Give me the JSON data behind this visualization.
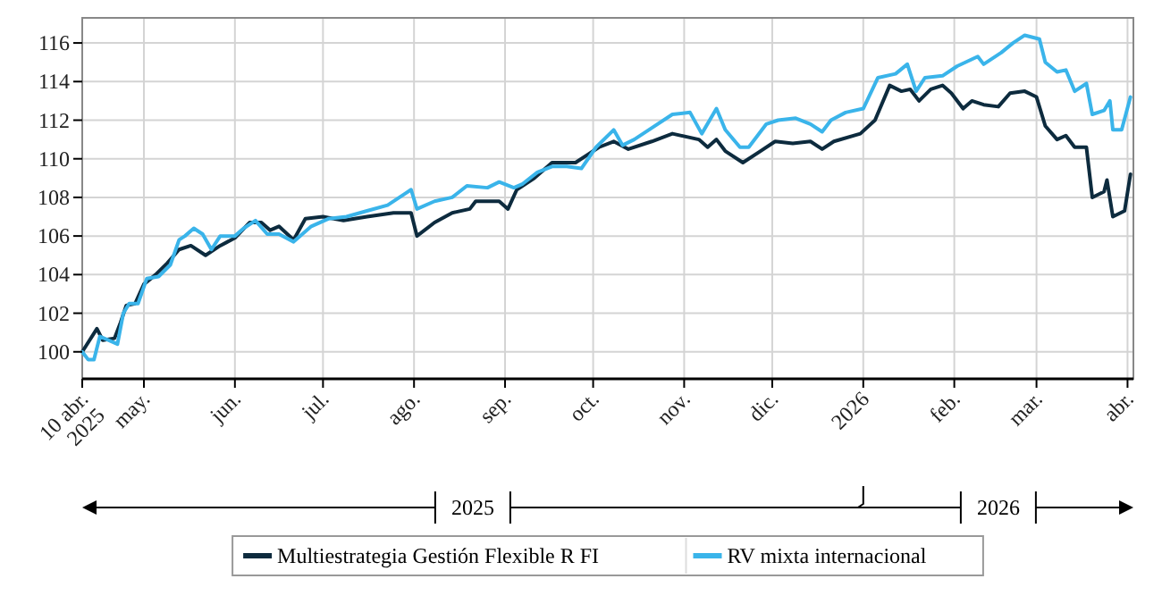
{
  "chart_data": {
    "type": "line",
    "xlim": [
      "2025-04-10",
      "2026-04-03"
    ],
    "xticks": [
      {
        "value": "2025-04-10",
        "label": "10 abr.\n2025"
      },
      {
        "value": "2025-05-01",
        "label": "may."
      },
      {
        "value": "2025-06-01",
        "label": "jun."
      },
      {
        "value": "2025-07-01",
        "label": "jul."
      },
      {
        "value": "2025-08-01",
        "label": "ago."
      },
      {
        "value": "2025-09-01",
        "label": "sep."
      },
      {
        "value": "2025-10-01",
        "label": "oct."
      },
      {
        "value": "2025-11-01",
        "label": "nov."
      },
      {
        "value": "2025-12-01",
        "label": "dic."
      },
      {
        "value": "2026-01-01",
        "label": "2026"
      },
      {
        "value": "2026-02-01",
        "label": "feb."
      },
      {
        "value": "2026-03-01",
        "label": "mar."
      },
      {
        "value": "2026-04-01",
        "label": "abr."
      }
    ],
    "ylim": [
      98.6,
      117.3
    ],
    "yticks": [
      100,
      102,
      104,
      106,
      108,
      110,
      112,
      114,
      116
    ],
    "grid": true,
    "legend": "bottom",
    "marker": "none",
    "line_style": "solid",
    "annotations": [
      "2025",
      "2026"
    ],
    "series": [
      {
        "name": "Multiestrategia Gestión Flexible R FI",
        "color": "#0d2b3e",
        "x": [
          "2025-04-10",
          "2025-04-15",
          "2025-04-17",
          "2025-04-21",
          "2025-04-23",
          "2025-04-25",
          "2025-04-28",
          "2025-05-01",
          "2025-05-05",
          "2025-05-09",
          "2025-05-13",
          "2025-05-17",
          "2025-05-22",
          "2025-05-27",
          "2025-06-01",
          "2025-06-06",
          "2025-06-10",
          "2025-06-13",
          "2025-06-16",
          "2025-06-21",
          "2025-06-25",
          "2025-07-01",
          "2025-07-08",
          "2025-07-16",
          "2025-07-25",
          "2025-07-31",
          "2025-08-02",
          "2025-08-08",
          "2025-08-14",
          "2025-08-20",
          "2025-08-22",
          "2025-08-30",
          "2025-09-02",
          "2025-09-05",
          "2025-09-11",
          "2025-09-17",
          "2025-09-25",
          "2025-09-29",
          "2025-10-03",
          "2025-10-08",
          "2025-10-13",
          "2025-10-21",
          "2025-10-28",
          "2025-11-06",
          "2025-11-09",
          "2025-11-12",
          "2025-11-15",
          "2025-11-21",
          "2025-11-27",
          "2025-12-02",
          "2025-12-08",
          "2025-12-14",
          "2025-12-18",
          "2025-12-22",
          "2025-12-31",
          "2026-01-05",
          "2026-01-10",
          "2026-01-14",
          "2026-01-17",
          "2026-01-20",
          "2026-01-24",
          "2026-01-28",
          "2026-01-31",
          "2026-02-04",
          "2026-02-07",
          "2026-02-11",
          "2026-02-16",
          "2026-02-20",
          "2026-02-25",
          "2026-03-01",
          "2026-03-04",
          "2026-03-08",
          "2026-03-11",
          "2026-03-14",
          "2026-03-18",
          "2026-03-20",
          "2026-03-24",
          "2026-03-25",
          "2026-03-27",
          "2026-03-31",
          "2026-04-02"
        ],
        "values": [
          100,
          101.2,
          100.6,
          100.7,
          101.5,
          102.4,
          102.5,
          103.5,
          104,
          104.6,
          105.3,
          105.5,
          105,
          105.5,
          105.9,
          106.7,
          106.7,
          106.3,
          106.5,
          105.8,
          106.9,
          107,
          106.8,
          107,
          107.2,
          107.2,
          106,
          106.7,
          107.2,
          107.4,
          107.8,
          107.8,
          107.4,
          108.4,
          109,
          109.8,
          109.8,
          110.2,
          110.6,
          110.9,
          110.5,
          110.9,
          111.3,
          111,
          110.6,
          111,
          110.4,
          109.8,
          110.4,
          110.9,
          110.8,
          110.9,
          110.5,
          110.9,
          111.3,
          112,
          113.8,
          113.5,
          113.6,
          113,
          113.6,
          113.8,
          113.4,
          112.6,
          113,
          112.8,
          112.7,
          113.4,
          113.5,
          113.2,
          111.7,
          111,
          111.2,
          110.6,
          110.6,
          108,
          108.3,
          108.9,
          107,
          107.3,
          109.2
        ]
      },
      {
        "name": "RV mixta internacional",
        "color": "#3ab4ea",
        "x": [
          "2025-04-10",
          "2025-04-12",
          "2025-04-14",
          "2025-04-16",
          "2025-04-22",
          "2025-04-24",
          "2025-04-26",
          "2025-04-29",
          "2025-05-02",
          "2025-05-06",
          "2025-05-10",
          "2025-05-13",
          "2025-05-15",
          "2025-05-18",
          "2025-05-21",
          "2025-05-24",
          "2025-05-27",
          "2025-06-01",
          "2025-06-04",
          "2025-06-08",
          "2025-06-12",
          "2025-06-16",
          "2025-06-21",
          "2025-06-27",
          "2025-07-03",
          "2025-07-09",
          "2025-07-16",
          "2025-07-23",
          "2025-07-29",
          "2025-07-31",
          "2025-08-02",
          "2025-08-08",
          "2025-08-14",
          "2025-08-19",
          "2025-08-26",
          "2025-08-30",
          "2025-09-04",
          "2025-09-07",
          "2025-09-12",
          "2025-09-17",
          "2025-09-22",
          "2025-09-27",
          "2025-10-02",
          "2025-10-08",
          "2025-10-11",
          "2025-10-15",
          "2025-10-21",
          "2025-10-28",
          "2025-11-03",
          "2025-11-07",
          "2025-11-12",
          "2025-11-15",
          "2025-11-20",
          "2025-11-23",
          "2025-11-29",
          "2025-12-03",
          "2025-12-09",
          "2025-12-14",
          "2025-12-18",
          "2025-12-21",
          "2025-12-26",
          "2026-01-01",
          "2026-01-06",
          "2026-01-12",
          "2026-01-16",
          "2026-01-19",
          "2026-01-22",
          "2026-01-28",
          "2026-02-02",
          "2026-02-09",
          "2026-02-11",
          "2026-02-17",
          "2026-02-21",
          "2026-02-25",
          "2026-03-02",
          "2026-03-04",
          "2026-03-08",
          "2026-03-11",
          "2026-03-14",
          "2026-03-18",
          "2026-03-20",
          "2026-03-24",
          "2026-03-26",
          "2026-03-27",
          "2026-03-30",
          "2026-04-02"
        ],
        "values": [
          100,
          99.6,
          99.6,
          100.8,
          100.4,
          102,
          102.5,
          102.5,
          103.8,
          103.9,
          104.5,
          105.8,
          106,
          106.4,
          106.1,
          105.3,
          106,
          106,
          106.4,
          106.8,
          106.1,
          106.1,
          105.7,
          106.5,
          106.9,
          107,
          107.3,
          107.6,
          108.2,
          108.4,
          107.4,
          107.8,
          108,
          108.6,
          108.5,
          108.8,
          108.5,
          108.7,
          109.3,
          109.6,
          109.6,
          109.5,
          110.6,
          111.5,
          110.7,
          111,
          111.6,
          112.3,
          112.4,
          111.3,
          112.6,
          111.5,
          110.6,
          110.6,
          111.8,
          112,
          112.1,
          111.8,
          111.4,
          112,
          112.4,
          112.6,
          114.2,
          114.4,
          114.9,
          113.5,
          114.2,
          114.3,
          114.8,
          115.3,
          114.9,
          115.5,
          116,
          116.4,
          116.2,
          115,
          114.5,
          114.6,
          113.5,
          113.9,
          112.3,
          112.5,
          113,
          111.5,
          111.5,
          113.2
        ]
      }
    ]
  }
}
